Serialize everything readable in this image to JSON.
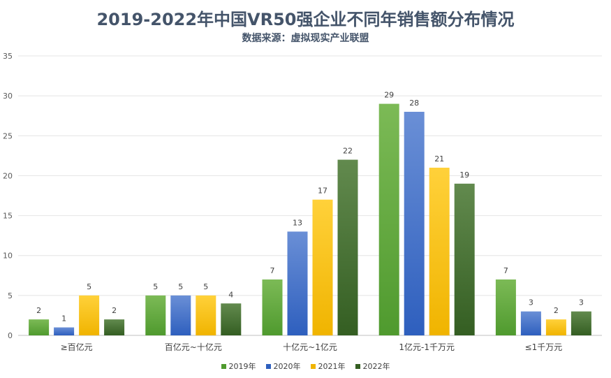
{
  "chart_data": {
    "type": "bar",
    "title": "2019-2022年中国VR50强企业不同年销售额分布情况",
    "subtitle": "数据来源：虚拟现实产业联盟",
    "categories": [
      "≥百亿元",
      "百亿元~十亿元",
      "十亿元~1亿元",
      "1亿元-1千万元",
      "≤1千万元"
    ],
    "series": [
      {
        "name": "2019年",
        "values": [
          2,
          5,
          7,
          29,
          7
        ],
        "color_top": "#7cba56",
        "color_bottom": "#4f9a2e"
      },
      {
        "name": "2020年",
        "values": [
          1,
          5,
          13,
          28,
          3
        ],
        "color_top": "#6a8fd6",
        "color_bottom": "#2e5fbe"
      },
      {
        "name": "2021年",
        "values": [
          5,
          5,
          17,
          21,
          2
        ],
        "color_top": "#ffd13a",
        "color_bottom": "#f0b400"
      },
      {
        "name": "2022年",
        "values": [
          2,
          4,
          22,
          19,
          3
        ],
        "color_top": "#628a4e",
        "color_bottom": "#345e22"
      }
    ],
    "y_ticks": [
      0,
      5,
      10,
      15,
      20,
      25,
      30,
      35
    ],
    "ylim": [
      0,
      35
    ],
    "grid": true,
    "legend_position": "bottom"
  }
}
